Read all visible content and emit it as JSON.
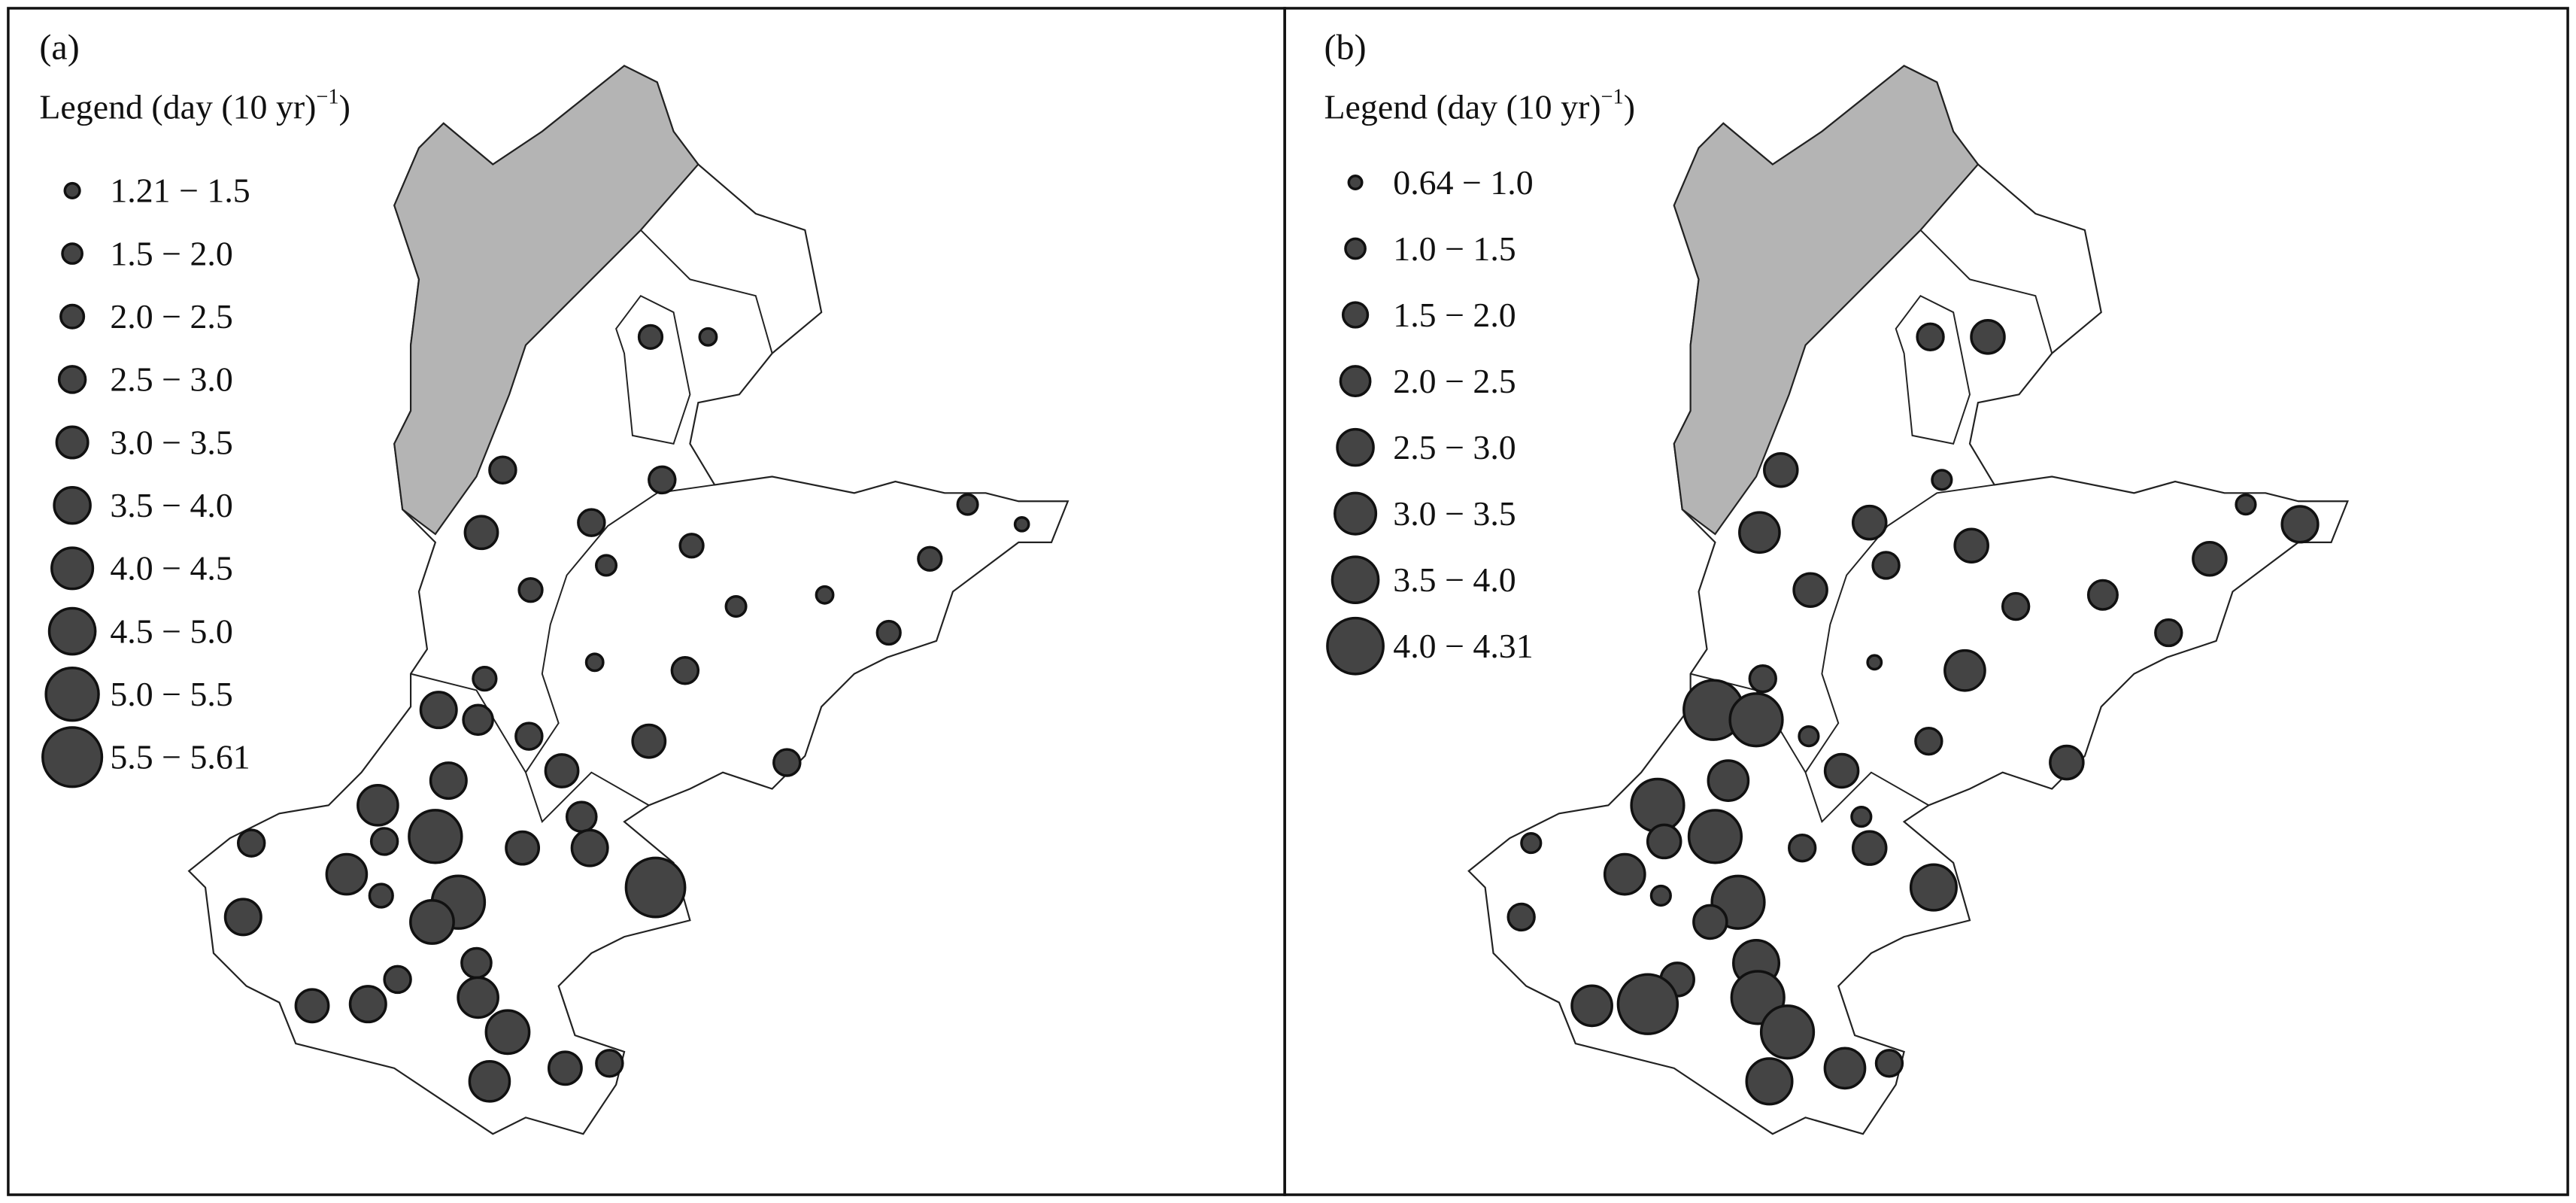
{
  "panels": [
    {
      "label": "(a)",
      "legend_title": [
        "Legend (day (10 yr)",
        "−1",
        ")"
      ],
      "legend": [
        "1.21 − 1.5",
        "1.5 − 2.0",
        "2.0 − 2.5",
        "2.5 − 3.0",
        "3.0 − 3.5",
        "3.5 − 4.0",
        "4.0 − 4.5",
        "4.5 − 5.0",
        "5.0 − 5.5",
        "5.5 − 5.61"
      ],
      "stations": [
        2.2,
        1.6,
        2.5,
        2.5,
        3.1,
        2.5,
        2.2,
        1.9,
        2.2,
        1.9,
        1.3,
        2.2,
        1.6,
        1.9,
        2.2,
        1.6,
        2.5,
        2.2,
        3.4,
        2.8,
        2.5,
        3.1,
        2.5,
        3.1,
        3.4,
        3.8,
        2.8,
        2.5,
        2.5,
        5.0,
        3.1,
        3.4,
        5.6,
        3.8,
        2.2,
        5.0,
        4.1,
        3.4,
        2.8,
        2.5,
        3.8,
        3.1,
        3.4,
        4.1,
        3.1,
        2.5,
        3.8
      ]
    },
    {
      "label": "(b)",
      "legend_title": [
        "Legend (day (10 yr)",
        "−1",
        ")"
      ],
      "legend": [
        "0.64 − 1.0",
        "1.0 − 1.5",
        "1.5 − 2.0",
        "2.0 − 2.5",
        "2.5 − 3.0",
        "3.0 − 3.5",
        "3.5 − 4.0",
        "4.0 − 4.31"
      ],
      "stations": [
        1.9,
        2.4,
        2.4,
        1.4,
        2.9,
        2.4,
        2.4,
        1.9,
        2.4,
        1.4,
        2.6,
        2.4,
        2.1,
        1.9,
        1.9,
        1.0,
        2.9,
        1.9,
        4.3,
        3.8,
        1.4,
        1.9,
        2.4,
        2.4,
        2.9,
        3.8,
        1.4,
        1.4,
        2.4,
        3.8,
        1.9,
        2.4,
        3.3,
        2.9,
        1.4,
        3.8,
        2.4,
        1.9,
        3.3,
        2.4,
        3.8,
        2.9,
        4.3,
        3.8,
        2.9,
        1.9,
        3.3
      ]
    }
  ]
}
